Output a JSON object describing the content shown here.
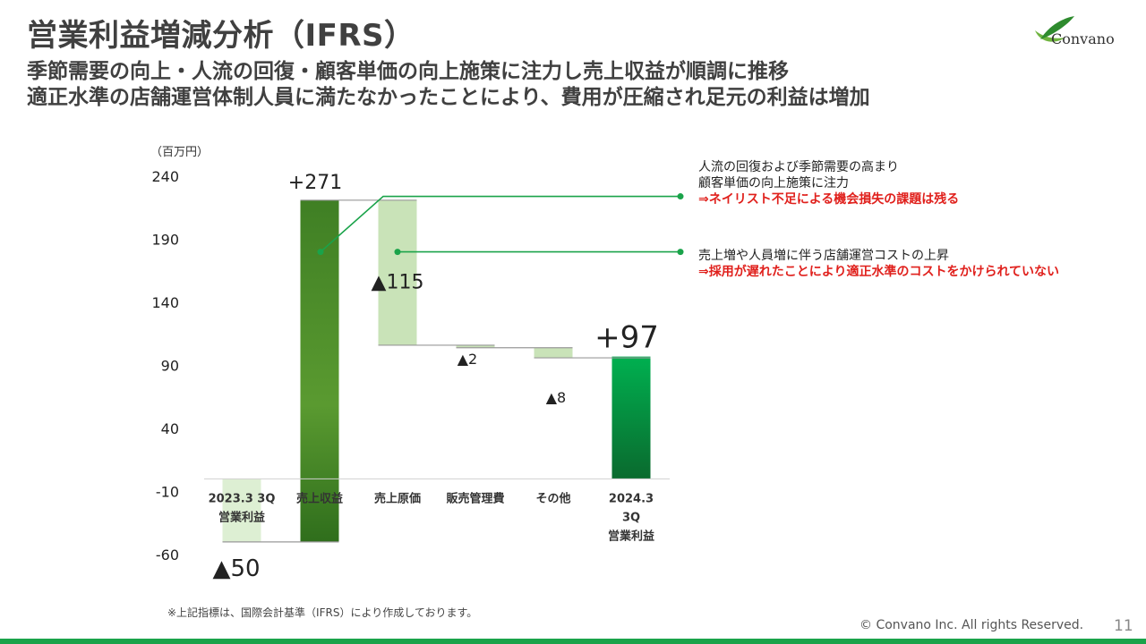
{
  "header": {
    "title": "営業利益増減分析（IFRS）",
    "subtitle_lines": [
      "季節需要の向上・人流の回復・顧客単価の向上施策に注力し売上収益が順調に推移",
      "適正水準の店舗運営体制人員に満たなかったことにより、費用が圧縮され足元の利益は増加"
    ]
  },
  "logo": {
    "text": "Convano"
  },
  "chart_data": {
    "type": "waterfall",
    "unit_label": "（百万円）",
    "ylim": [
      -60,
      240
    ],
    "yticks": [
      240,
      190,
      140,
      90,
      40,
      -10,
      -60
    ],
    "categories": [
      [
        "2023.3 3Q",
        "営業利益"
      ],
      [
        "売上収益"
      ],
      [
        "売上原価"
      ],
      [
        "販売管理費"
      ],
      [
        "その他"
      ],
      [
        "2024.3",
        "3Q",
        "営業利益"
      ]
    ],
    "bars": [
      {
        "label": "▲50",
        "start": 0,
        "end": -50,
        "kind": "total-neg"
      },
      {
        "label": "+271",
        "start": -50,
        "end": 221,
        "kind": "increase"
      },
      {
        "label": "▲115",
        "start": 221,
        "end": 106,
        "kind": "decrease"
      },
      {
        "label": "▲2",
        "start": 106,
        "end": 104,
        "kind": "decrease"
      },
      {
        "label": "▲8",
        "start": 104,
        "end": 96,
        "kind": "decrease"
      },
      {
        "label": "+97",
        "start": 0,
        "end": 97,
        "kind": "total-pos"
      }
    ]
  },
  "annotations": [
    {
      "lines": [
        "人流の回復および季節需要の高まり",
        "顧客単価の向上施策に注力"
      ],
      "warning": "⇒ネイリスト不足による機会損失の課題は残る"
    },
    {
      "lines": [
        "売上増や人員増に伴う店舗運営コストの上昇"
      ],
      "warning": "⇒採用が遅れたことにより適正水準のコストをかけられていない"
    }
  ],
  "footer": {
    "footnote": "※上記指標は、国際会計基準（IFRS）により作成しております。",
    "copyright": "© Convano Inc. All rights Reserved.",
    "page_number": "11"
  },
  "colors": {
    "increase": "#5a9a30",
    "increase_top": "#3f7f24",
    "decrease": "#c9e3b8",
    "total_pos_top": "#00b050",
    "total_pos_bottom": "#0a6a2e",
    "total_neg": "#ddefd3",
    "connector": "#999999",
    "callout": "#1aa34a"
  }
}
